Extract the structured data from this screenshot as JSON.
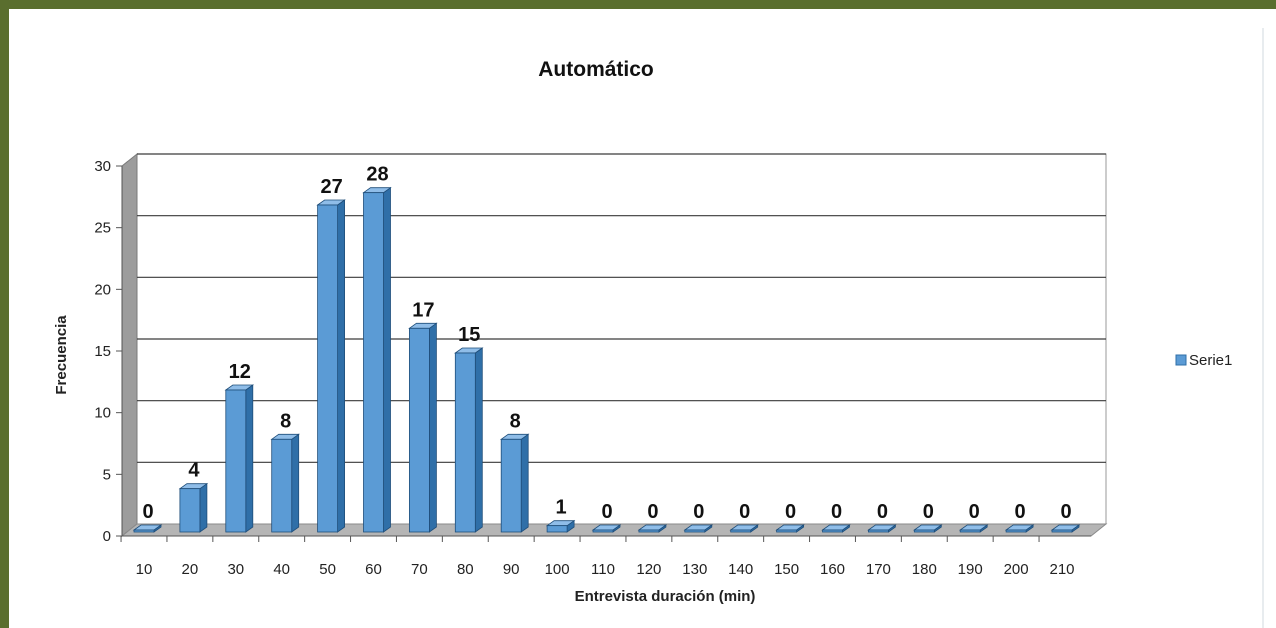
{
  "chart_data": {
    "type": "bar",
    "title": "Automático",
    "xlabel": "Entrevista duración (min)",
    "ylabel": "Frecuencia",
    "categories": [
      "10",
      "20",
      "30",
      "40",
      "50",
      "60",
      "70",
      "80",
      "90",
      "100",
      "110",
      "120",
      "130",
      "140",
      "150",
      "160",
      "170",
      "180",
      "190",
      "200",
      "210"
    ],
    "series": [
      {
        "name": "Serie1",
        "values": [
          0,
          4,
          12,
          8,
          27,
          28,
          17,
          15,
          8,
          1,
          0,
          0,
          0,
          0,
          0,
          0,
          0,
          0,
          0,
          0,
          0
        ]
      }
    ],
    "ylim": [
      0,
      30
    ],
    "yticks": [
      0,
      5,
      10,
      15,
      20,
      25,
      30
    ],
    "grid": true,
    "legend": "right",
    "colors": {
      "bar_front": "#5b9bd5",
      "bar_side": "#2f6fa8",
      "bar_top": "#8fbde8",
      "frame": "#5a6e2e"
    }
  }
}
